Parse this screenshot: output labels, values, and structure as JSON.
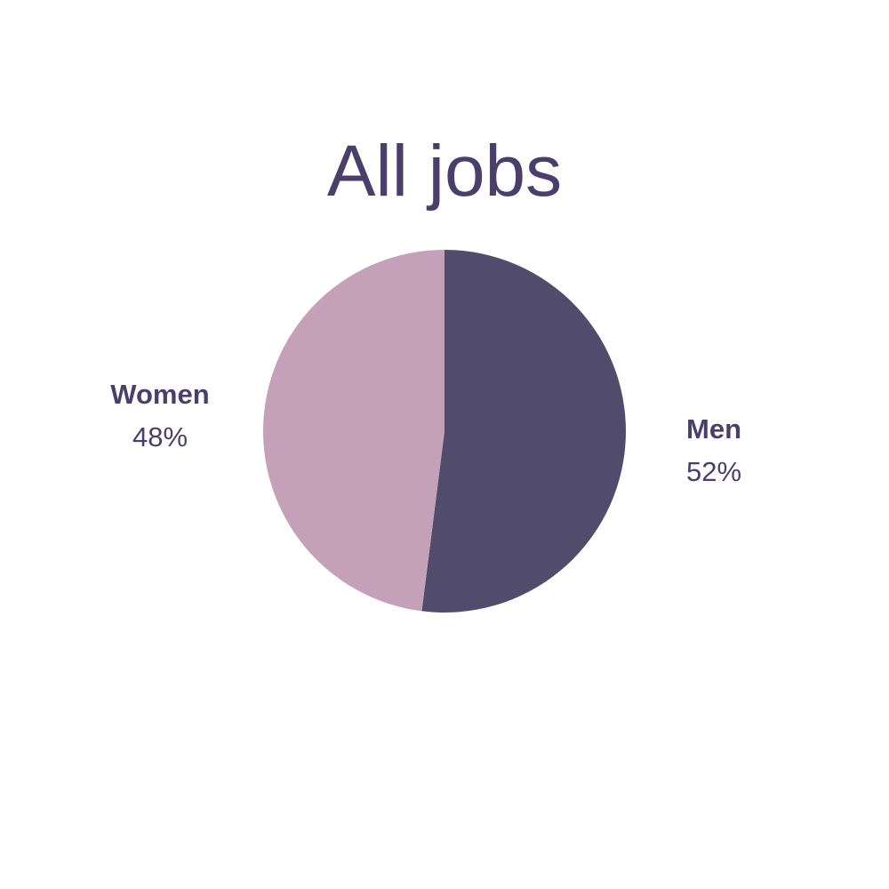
{
  "chart_data": {
    "type": "pie",
    "title": "All jobs",
    "slices": [
      {
        "label": "Men",
        "value": 52,
        "display": "52%",
        "color": "#524c6c"
      },
      {
        "label": "Women",
        "value": 48,
        "display": "48%",
        "color": "#c5a1b9"
      }
    ],
    "start": "top",
    "direction": "clockwise",
    "legend": "none"
  }
}
